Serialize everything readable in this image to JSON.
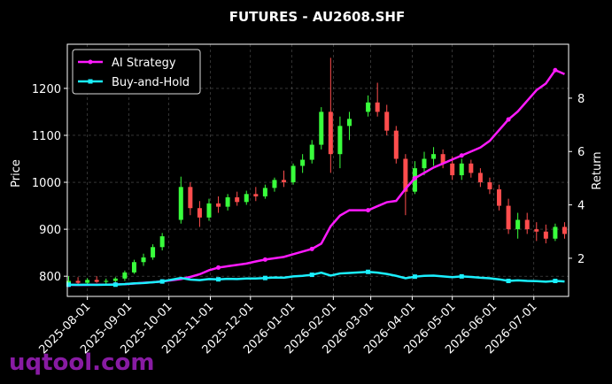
{
  "chart_data": {
    "type": "candlestick",
    "title": "FUTURES - AU2608.SHF",
    "x": [
      "2025-07-18",
      "2025-07-25",
      "2025-08-01",
      "2025-08-08",
      "2025-08-15",
      "2025-08-22",
      "2025-08-29",
      "2025-09-05",
      "2025-09-12",
      "2025-09-19",
      "2025-09-26",
      "2025-10-10",
      "2025-10-17",
      "2025-10-24",
      "2025-10-31",
      "2025-11-07",
      "2025-11-14",
      "2025-11-21",
      "2025-11-28",
      "2025-12-05",
      "2025-12-12",
      "2025-12-19",
      "2025-12-26",
      "2026-01-02",
      "2026-01-09",
      "2026-01-16",
      "2026-01-23",
      "2026-01-30",
      "2026-02-06",
      "2026-02-13",
      "2026-02-27",
      "2026-03-06",
      "2026-03-13",
      "2026-03-20",
      "2026-03-27",
      "2026-04-03",
      "2026-04-10",
      "2026-04-17",
      "2026-04-24",
      "2026-05-01",
      "2026-05-08",
      "2026-05-15",
      "2026-05-22",
      "2026-05-29",
      "2026-06-05",
      "2026-06-12",
      "2026-06-19",
      "2026-06-26",
      "2026-07-03",
      "2026-07-10",
      "2026-07-17",
      "2026-07-24"
    ],
    "open": [
      785,
      790,
      786,
      792,
      788,
      790,
      795,
      808,
      830,
      840,
      862,
      920,
      990,
      945,
      925,
      955,
      948,
      968,
      958,
      975,
      970,
      988,
      1005,
      1000,
      1035,
      1048,
      1080,
      1150,
      1060,
      1120,
      1150,
      1170,
      1150,
      1110,
      1050,
      980,
      1030,
      1050,
      1060,
      1040,
      1015,
      1040,
      1020,
      1000,
      985,
      950,
      900,
      920,
      900,
      895,
      880,
      905
    ],
    "high": [
      800,
      798,
      796,
      800,
      795,
      798,
      812,
      835,
      848,
      868,
      892,
      1012,
      1000,
      960,
      965,
      970,
      975,
      980,
      982,
      990,
      995,
      1010,
      1025,
      1040,
      1060,
      1090,
      1160,
      1265,
      1140,
      1150,
      1185,
      1212,
      1165,
      1120,
      1060,
      1045,
      1065,
      1075,
      1070,
      1055,
      1050,
      1048,
      1030,
      1010,
      995,
      965,
      935,
      935,
      915,
      910,
      912,
      915
    ],
    "low": [
      778,
      782,
      780,
      786,
      782,
      785,
      790,
      805,
      822,
      835,
      855,
      912,
      930,
      905,
      918,
      935,
      940,
      950,
      952,
      960,
      965,
      980,
      990,
      995,
      1020,
      1040,
      1070,
      1020,
      1030,
      1090,
      1140,
      1140,
      1100,
      1040,
      930,
      975,
      1015,
      1035,
      1030,
      1005,
      1005,
      1010,
      990,
      975,
      940,
      890,
      880,
      890,
      875,
      870,
      875,
      880
    ],
    "close": [
      790,
      786,
      792,
      788,
      790,
      795,
      808,
      830,
      840,
      862,
      885,
      990,
      945,
      925,
      955,
      948,
      968,
      958,
      975,
      970,
      988,
      1005,
      1000,
      1035,
      1048,
      1080,
      1150,
      1060,
      1120,
      1135,
      1170,
      1150,
      1110,
      1050,
      980,
      1030,
      1050,
      1060,
      1040,
      1015,
      1040,
      1020,
      1000,
      985,
      950,
      900,
      920,
      900,
      895,
      880,
      905,
      890
    ],
    "up_color": "#39ff3c",
    "down_color": "#ff4d4d",
    "series": [
      {
        "name": "AI Strategy",
        "color": "#ff1aff",
        "axis": "y2",
        "values": [
          1.0,
          1.0,
          1.0,
          1.01,
          1.01,
          1.02,
          1.03,
          1.05,
          1.08,
          1.1,
          1.13,
          1.22,
          1.3,
          1.4,
          1.55,
          1.65,
          1.7,
          1.75,
          1.8,
          1.88,
          1.95,
          2.0,
          2.05,
          2.15,
          2.25,
          2.35,
          2.55,
          3.2,
          3.6,
          3.8,
          3.8,
          3.95,
          4.1,
          4.15,
          4.6,
          5.0,
          5.2,
          5.4,
          5.55,
          5.7,
          5.85,
          6.0,
          6.15,
          6.4,
          6.8,
          7.2,
          7.5,
          7.9,
          8.3,
          8.55,
          9.05,
          8.9
        ]
      },
      {
        "name": "Buy-and-Hold",
        "color": "#1af0ff",
        "axis": "y2",
        "values": [
          1.01,
          1.0,
          1.01,
          1.0,
          1.01,
          1.01,
          1.03,
          1.06,
          1.07,
          1.1,
          1.13,
          1.26,
          1.2,
          1.18,
          1.22,
          1.21,
          1.23,
          1.22,
          1.24,
          1.24,
          1.26,
          1.28,
          1.27,
          1.32,
          1.34,
          1.38,
          1.46,
          1.35,
          1.43,
          1.45,
          1.49,
          1.46,
          1.41,
          1.34,
          1.25,
          1.31,
          1.34,
          1.35,
          1.32,
          1.29,
          1.32,
          1.3,
          1.27,
          1.25,
          1.21,
          1.15,
          1.17,
          1.15,
          1.14,
          1.12,
          1.15,
          1.13
        ]
      }
    ],
    "ylabel": "Price",
    "y2label": "Return",
    "xlim": [
      "2025-07-17",
      "2026-07-27"
    ],
    "xticks": [
      "2025-08-01",
      "2025-09-01",
      "2025-10-01",
      "2025-11-01",
      "2025-12-01",
      "2026-01-01",
      "2026-02-01",
      "2026-03-01",
      "2026-04-01",
      "2026-05-01",
      "2026-06-01",
      "2026-07-01"
    ],
    "ylim": [
      757,
      1294
    ],
    "yticks": [
      800,
      900,
      1000,
      1100,
      1200
    ],
    "y2lim": [
      0.57,
      10.02
    ],
    "y2ticks": [
      2,
      4,
      6,
      8
    ],
    "grid": true,
    "legend": "upper left"
  },
  "watermark": "uqtool.com"
}
